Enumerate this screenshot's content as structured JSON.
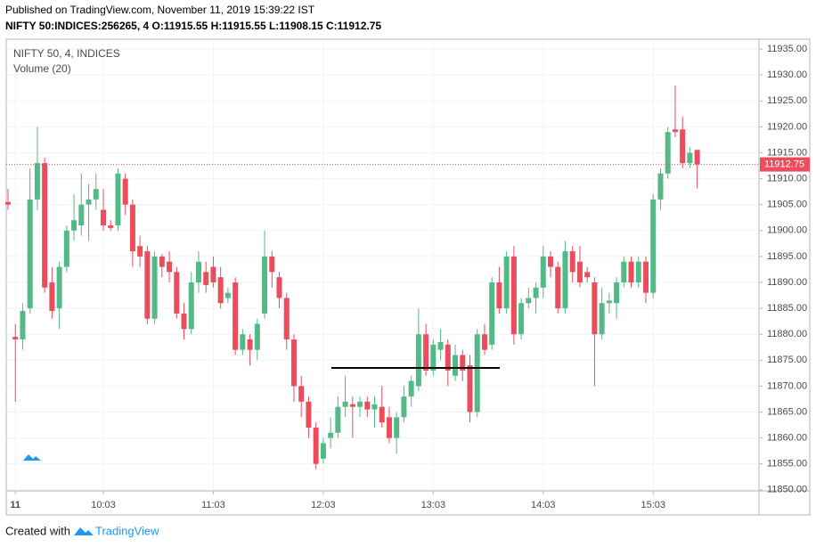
{
  "header": {
    "published": "Published on TradingView.com, November 11, 2019 15:39:22 IST",
    "symbol_line": "NIFTY 50:INDICES:256265, 4 O:11915.55 H:11915.55 L:11908.15 C:11912.75"
  },
  "footer": {
    "created_with": "Created with",
    "brand": "TradingView"
  },
  "chart_data": {
    "type": "candlestick",
    "legend": [
      "NIFTY 50, 4, INDICES",
      "Volume (20)"
    ],
    "up_color": "#53b987",
    "down_color": "#eb4d5c",
    "categories": [
      null,
      "11",
      null,
      null,
      null,
      null,
      null,
      null,
      null,
      null,
      null,
      null,
      null,
      "10:03",
      null,
      null,
      null,
      null,
      null,
      null,
      null,
      null,
      null,
      null,
      null,
      null,
      null,
      null,
      "11:03",
      null,
      null,
      null,
      null,
      null,
      null,
      null,
      null,
      null,
      null,
      null,
      null,
      null,
      null,
      "12:03",
      null,
      null,
      null,
      null,
      null,
      null,
      null,
      null,
      null,
      null,
      null,
      null,
      null,
      null,
      "13:03",
      null,
      null,
      null,
      null,
      null,
      null,
      null,
      null,
      null,
      null,
      null,
      null,
      null,
      null,
      "14:03",
      null,
      null,
      null,
      null,
      null,
      null,
      null,
      null,
      null,
      null,
      null,
      null,
      null,
      null,
      "15:03",
      null,
      null,
      null,
      null,
      null,
      null
    ],
    "open": [
      11905.5,
      11879.5,
      11879,
      11885,
      11906,
      11913,
      11890,
      11885,
      11893,
      11900,
      11901,
      11905,
      11906,
      11904,
      11901,
      11901,
      11910,
      11905,
      11897,
      11896,
      11883,
      11895,
      11894,
      11892,
      11884,
      11881,
      11890,
      11892,
      11893,
      11891,
      11887,
      11890,
      11877,
      11879,
      11877,
      11884,
      11895,
      11891,
      11887,
      11879,
      11870,
      11867,
      11862,
      11856,
      11860,
      11861,
      11866,
      11866.5,
      11866,
      11867,
      11865.5,
      11866,
      11864,
      11860,
      11864,
      11868,
      11870,
      11880,
      11873,
      11877,
      11878,
      11872,
      11876,
      11874,
      11865,
      11880,
      11878,
      11890,
      11885,
      11895,
      11880,
      11886,
      11887,
      11889,
      11895,
      11893,
      11885,
      11896,
      11894,
      11892,
      11890,
      11880,
      11886,
      11886,
      11890,
      11894,
      11890,
      11894,
      11888,
      11906,
      11911,
      11919.5,
      11919.5,
      11913,
      11915.55
    ],
    "high": [
      11908,
      11882,
      11886,
      11912,
      11920,
      11914,
      11893,
      11894,
      11901,
      11907,
      11911,
      11909,
      11911,
      11908,
      11902,
      11912,
      11911,
      11906,
      11899,
      11897,
      11896,
      11895.5,
      11896,
      11893,
      11886,
      11892,
      11896,
      11894,
      11895,
      11893,
      11889,
      11891,
      11881,
      11880,
      11883,
      11900,
      11896,
      11892,
      11888,
      11880,
      11872,
      11868,
      11863,
      11860,
      11864,
      11868,
      11872,
      11868,
      11868,
      11868,
      11868,
      11870,
      11866,
      11865,
      11870,
      11872,
      11885,
      11882,
      11879,
      11881,
      11879,
      11878,
      11877,
      11876,
      11881,
      11882,
      11891,
      11893,
      11896,
      11897,
      11887,
      11889,
      11890,
      11897,
      11896,
      11894,
      11898,
      11897,
      11897,
      11893,
      11891,
      11889,
      11888,
      11891,
      11895,
      11895,
      11895,
      11895,
      11907,
      11912,
      11920,
      11928,
      11922,
      11916,
      11915.55
    ],
    "low": [
      11904,
      11867,
      11877,
      11884,
      11904,
      11888,
      11883,
      11881,
      11892,
      11898,
      11899,
      11898,
      11904,
      11900,
      11900,
      11900,
      11903,
      11893,
      11893,
      11882,
      11882,
      11891,
      11890,
      11883,
      11879,
      11880,
      11888,
      11888,
      11889,
      11885,
      11886,
      11876,
      11876,
      11874,
      11875,
      11883,
      11889,
      11885,
      11877,
      11867,
      11864,
      11860,
      11854,
      11855,
      11858,
      11860,
      11864,
      11860,
      11864,
      11864,
      11862,
      11862,
      11859,
      11857,
      11863,
      11866,
      11869,
      11872,
      11872,
      11875,
      11870,
      11871,
      11871,
      11863,
      11864,
      11876,
      11877,
      11884,
      11884,
      11878,
      11879,
      11885,
      11884,
      11887,
      11891,
      11884,
      11884,
      11890,
      11889,
      11890,
      11870,
      11879,
      11884,
      11883,
      11889,
      11889,
      11889,
      11886,
      11887,
      11904,
      11910,
      11918,
      11912,
      11912,
      11908.15
    ],
    "close": [
      11905,
      11879,
      11884.5,
      11906,
      11913,
      11889,
      11884.5,
      11893,
      11900,
      11902,
      11905,
      11906,
      11908,
      11901,
      11900.5,
      11911,
      11905,
      11896,
      11895,
      11883,
      11895,
      11893,
      11892,
      11884,
      11881,
      11890,
      11894,
      11889.5,
      11890,
      11886,
      11888,
      11877,
      11880,
      11877,
      11882,
      11895,
      11892,
      11887,
      11879,
      11870,
      11867,
      11862,
      11855,
      11859,
      11861,
      11866,
      11867,
      11866,
      11867,
      11865.5,
      11866.5,
      11863,
      11860,
      11864,
      11868,
      11871,
      11880,
      11873,
      11878,
      11878.5,
      11873,
      11876,
      11873,
      11865,
      11880,
      11877,
      11890,
      11885,
      11895,
      11880,
      11886,
      11887,
      11889,
      11895,
      11893,
      11885,
      11896,
      11892,
      11890,
      11891,
      11880,
      11886,
      11886.5,
      11890,
      11894,
      11890,
      11894,
      11888,
      11906,
      11911,
      11919,
      11919,
      11913,
      11915,
      11912.75
    ],
    "last_price_label": "11912.75",
    "horizontal_line": 11873.5,
    "ylim": [
      11849.8,
      11936.9
    ],
    "yticks": [
      {
        "value": 11850,
        "label": "11850.00"
      },
      {
        "value": 11855,
        "label": "11855.00"
      },
      {
        "value": 11860,
        "label": "11860.00"
      },
      {
        "value": 11865,
        "label": "11865.00"
      },
      {
        "value": 11870,
        "label": "11870.00"
      },
      {
        "value": 11875,
        "label": "11875.00"
      },
      {
        "value": 11880,
        "label": "11880.00"
      },
      {
        "value": 11885,
        "label": "11885.00"
      },
      {
        "value": 11890,
        "label": "11890.00"
      },
      {
        "value": 11895,
        "label": "11895.00"
      },
      {
        "value": 11900,
        "label": "11900.00"
      },
      {
        "value": 11905,
        "label": "11905.00"
      },
      {
        "value": 11910,
        "label": "11910.00"
      },
      {
        "value": 11915,
        "label": "11915.00"
      },
      {
        "value": 11920,
        "label": "11920.00"
      },
      {
        "value": 11925,
        "label": "11925.00"
      },
      {
        "value": 11930,
        "label": "11930.00"
      },
      {
        "value": 11935,
        "label": "11935.00"
      }
    ],
    "grid": true
  }
}
